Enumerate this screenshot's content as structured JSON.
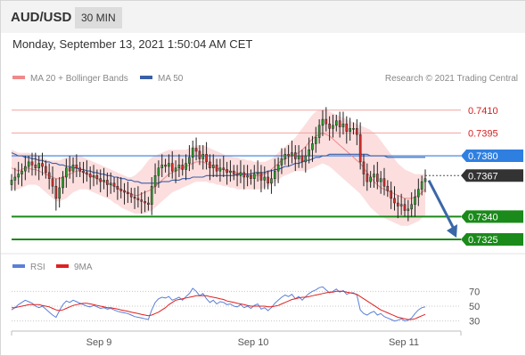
{
  "header": {
    "symbol": "AUD/USD",
    "timeframe": "30 MIN"
  },
  "datetime": "Monday, September 13, 2021 1:50:04 AM CET",
  "legend": {
    "bollinger": "MA 20 + Bollinger Bands",
    "ma50": "MA 50",
    "credit": "Research © 2021 Trading Central"
  },
  "rsi_legend": {
    "rsi": "RSI",
    "ma": "9MA"
  },
  "colors": {
    "bollinger": "#f08a8a",
    "ma50": "#3a5fa8",
    "resistance": "#e06060",
    "support": "#1a8a1a",
    "current": "#333333",
    "pivot": "#2f7fe0",
    "arrow": "#3a67a8",
    "rsi": "#5a7fd8",
    "rsi_ma": "#e02020"
  },
  "chart_data": [
    {
      "type": "candlestick",
      "title": "AUD/USD 30 MIN",
      "x_ticks": [
        "Sep 9",
        "Sep 10",
        "Sep 11"
      ],
      "ylim": [
        0.7318,
        0.7421
      ],
      "levels": [
        {
          "value": 0.741,
          "label": "0.7410",
          "kind": "resistance"
        },
        {
          "value": 0.7395,
          "label": "0.7395",
          "kind": "resistance"
        },
        {
          "value": 0.738,
          "label": "0.7380",
          "kind": "pivot"
        },
        {
          "value": 0.7367,
          "label": "0.7367",
          "kind": "current"
        },
        {
          "value": 0.734,
          "label": "0.7340",
          "kind": "support"
        },
        {
          "value": 0.7325,
          "label": "0.7325",
          "kind": "support"
        }
      ],
      "close": [
        0.7364,
        0.7366,
        0.7368,
        0.737,
        0.7373,
        0.7376,
        0.7374,
        0.7372,
        0.7375,
        0.7373,
        0.7369,
        0.7365,
        0.736,
        0.7352,
        0.7359,
        0.7366,
        0.7372,
        0.737,
        0.7374,
        0.7372,
        0.737,
        0.7369,
        0.7368,
        0.7366,
        0.7367,
        0.7365,
        0.7363,
        0.7364,
        0.7361,
        0.7362,
        0.736,
        0.7358,
        0.7357,
        0.7356,
        0.7355,
        0.7353,
        0.7352,
        0.7351,
        0.735,
        0.7349,
        0.7348,
        0.736,
        0.7367,
        0.7372,
        0.7374,
        0.7373,
        0.7375,
        0.737,
        0.7372,
        0.7374,
        0.7371,
        0.7375,
        0.7379,
        0.7385,
        0.7383,
        0.7378,
        0.7381,
        0.7376,
        0.7372,
        0.7374,
        0.737,
        0.7372,
        0.7371,
        0.7369,
        0.737,
        0.7368,
        0.7367,
        0.7369,
        0.7366,
        0.7367,
        0.7365,
        0.7368,
        0.7369,
        0.7364,
        0.7366,
        0.7362,
        0.7365,
        0.737,
        0.7374,
        0.7378,
        0.7381,
        0.738,
        0.7382,
        0.7378,
        0.738,
        0.7376,
        0.738,
        0.7384,
        0.7388,
        0.7392,
        0.74,
        0.7404,
        0.7401,
        0.7398,
        0.74,
        0.7403,
        0.7399,
        0.7401,
        0.7396,
        0.7398,
        0.7398,
        0.7394,
        0.7376,
        0.7368,
        0.7363,
        0.7366,
        0.7368,
        0.7363,
        0.7365,
        0.736,
        0.7357,
        0.7352,
        0.7349,
        0.7347,
        0.7348,
        0.7344,
        0.7345,
        0.7348,
        0.7353,
        0.7358,
        0.7363,
        0.7365
      ],
      "ma20": [
        0.7372,
        0.7371,
        0.737,
        0.7371,
        0.7372,
        0.7372,
        0.7371,
        0.7371,
        0.737,
        0.7369,
        0.7368,
        0.7367,
        0.7366,
        0.7365,
        0.7365,
        0.7366,
        0.7367,
        0.7368,
        0.7369,
        0.737,
        0.737,
        0.7369,
        0.7368,
        0.7367,
        0.7366,
        0.7365,
        0.7364,
        0.7363,
        0.7362,
        0.7361,
        0.736,
        0.7359,
        0.7358,
        0.7357,
        0.7356,
        0.7355,
        0.7354,
        0.7354,
        0.7355,
        0.7356,
        0.7357,
        0.7358,
        0.736,
        0.7362,
        0.7364,
        0.7366,
        0.7368,
        0.7369,
        0.737,
        0.7371,
        0.7372,
        0.7373,
        0.7374,
        0.7375,
        0.7376,
        0.7376,
        0.7376,
        0.7375,
        0.7374,
        0.7373,
        0.7372,
        0.7371,
        0.7371,
        0.737,
        0.737,
        0.7369,
        0.7369,
        0.7368,
        0.7368,
        0.7367,
        0.7367,
        0.7367,
        0.7367,
        0.7367,
        0.7368,
        0.7369,
        0.7371,
        0.7373,
        0.7375,
        0.7377,
        0.7378,
        0.7379,
        0.738,
        0.7381,
        0.7382,
        0.7384,
        0.7386,
        0.7389,
        0.7391,
        0.7393,
        0.7394,
        0.7395,
        0.7394,
        0.7393,
        0.7391,
        0.7389,
        0.7387,
        0.7385,
        0.7383,
        0.7381,
        0.7379,
        0.7377,
        0.7375,
        0.7372,
        0.7369,
        0.7366,
        0.7363,
        0.7361,
        0.7359,
        0.7358,
        0.7357,
        0.7356,
        0.7355,
        0.7354,
        0.7353,
        0.7352,
        0.7352,
        0.7352,
        0.7353,
        0.7354,
        0.7356,
        0.7358
      ],
      "bb_upper": [
        0.7384,
        0.7383,
        0.7382,
        0.7382,
        0.7382,
        0.7382,
        0.7381,
        0.7381,
        0.738,
        0.7379,
        0.7378,
        0.7377,
        0.7377,
        0.7377,
        0.7377,
        0.7378,
        0.7379,
        0.7379,
        0.738,
        0.738,
        0.738,
        0.7379,
        0.7378,
        0.7377,
        0.7376,
        0.7375,
        0.7374,
        0.7373,
        0.7372,
        0.7371,
        0.737,
        0.7369,
        0.7368,
        0.7367,
        0.7366,
        0.7366,
        0.7367,
        0.7369,
        0.7371,
        0.7374,
        0.7377,
        0.7379,
        0.738,
        0.7381,
        0.7382,
        0.7383,
        0.7384,
        0.7384,
        0.7384,
        0.7384,
        0.7384,
        0.7384,
        0.7385,
        0.7386,
        0.7387,
        0.7387,
        0.7387,
        0.7386,
        0.7385,
        0.7384,
        0.7383,
        0.7382,
        0.7381,
        0.738,
        0.738,
        0.7379,
        0.7379,
        0.7378,
        0.7378,
        0.7377,
        0.7377,
        0.7376,
        0.7376,
        0.7376,
        0.7376,
        0.7377,
        0.7378,
        0.738,
        0.7382,
        0.7384,
        0.7386,
        0.7388,
        0.739,
        0.7392,
        0.7395,
        0.7398,
        0.7401,
        0.7404,
        0.7407,
        0.7409,
        0.741,
        0.741,
        0.741,
        0.7409,
        0.7408,
        0.7407,
        0.7406,
        0.7405,
        0.7404,
        0.7403,
        0.7402,
        0.7401,
        0.74,
        0.7399,
        0.7398,
        0.7397,
        0.7395,
        0.7393,
        0.739,
        0.7387,
        0.7384,
        0.7381,
        0.7378,
        0.7375,
        0.7373,
        0.7371,
        0.737,
        0.7369,
        0.7368,
        0.7368,
        0.7368,
        0.7368
      ],
      "bb_lower": [
        0.7358,
        0.7358,
        0.7358,
        0.7359,
        0.736,
        0.7361,
        0.7361,
        0.7361,
        0.736,
        0.7358,
        0.7356,
        0.7354,
        0.7352,
        0.735,
        0.735,
        0.7351,
        0.7352,
        0.7354,
        0.7356,
        0.7357,
        0.7358,
        0.7358,
        0.7358,
        0.7357,
        0.7356,
        0.7355,
        0.7354,
        0.7353,
        0.7352,
        0.7351,
        0.7349,
        0.7348,
        0.7346,
        0.7345,
        0.7344,
        0.7343,
        0.7342,
        0.7342,
        0.7342,
        0.7342,
        0.7343,
        0.7344,
        0.7346,
        0.7348,
        0.735,
        0.7352,
        0.7354,
        0.7356,
        0.7357,
        0.7358,
        0.7359,
        0.736,
        0.7361,
        0.7362,
        0.7363,
        0.7363,
        0.7363,
        0.7363,
        0.7362,
        0.7362,
        0.7361,
        0.7361,
        0.736,
        0.736,
        0.7359,
        0.7359,
        0.7358,
        0.7358,
        0.7358,
        0.7358,
        0.7358,
        0.7358,
        0.7358,
        0.7358,
        0.7359,
        0.736,
        0.7361,
        0.7363,
        0.7364,
        0.7366,
        0.7367,
        0.7368,
        0.7369,
        0.737,
        0.737,
        0.737,
        0.737,
        0.7371,
        0.7372,
        0.7373,
        0.7374,
        0.7375,
        0.7374,
        0.7373,
        0.7371,
        0.7369,
        0.7367,
        0.7365,
        0.7363,
        0.7361,
        0.7359,
        0.7357,
        0.7355,
        0.7352,
        0.7349,
        0.7346,
        0.7344,
        0.7342,
        0.734,
        0.7339,
        0.7338,
        0.7337,
        0.7336,
        0.7335,
        0.7334,
        0.7334,
        0.7334,
        0.7335,
        0.7336,
        0.7337,
        0.7339,
        0.7341
      ],
      "ma50": [
        0.7382,
        0.7381,
        0.738,
        0.738,
        0.7379,
        0.7379,
        0.7378,
        0.7378,
        0.7377,
        0.7377,
        0.7376,
        0.7376,
        0.7375,
        0.7375,
        0.7374,
        0.7374,
        0.7373,
        0.7373,
        0.7372,
        0.7372,
        0.7371,
        0.7371,
        0.737,
        0.737,
        0.7369,
        0.7369,
        0.7368,
        0.7368,
        0.7367,
        0.7367,
        0.7366,
        0.7366,
        0.7365,
        0.7365,
        0.7364,
        0.7364,
        0.7363,
        0.7363,
        0.7362,
        0.7362,
        0.7362,
        0.7362,
        0.7362,
        0.7362,
        0.7363,
        0.7363,
        0.7363,
        0.7364,
        0.7364,
        0.7364,
        0.7365,
        0.7365,
        0.7365,
        0.7366,
        0.7366,
        0.7366,
        0.7366,
        0.7367,
        0.7367,
        0.7367,
        0.7367,
        0.7367,
        0.7367,
        0.7367,
        0.7367,
        0.7367,
        0.7368,
        0.7368,
        0.7368,
        0.7368,
        0.7368,
        0.7369,
        0.7369,
        0.7369,
        0.7369,
        0.737,
        0.737,
        0.7371,
        0.7371,
        0.7372,
        0.7373,
        0.7373,
        0.7374,
        0.7375,
        0.7375,
        0.7376,
        0.7377,
        0.7377,
        0.7378,
        0.7379,
        0.7379,
        0.738,
        0.738,
        0.7381,
        0.7381,
        0.7381,
        0.7381,
        0.7381,
        0.7381,
        0.7381,
        0.7381,
        0.7381,
        0.7381,
        0.7381,
        0.7381,
        0.738,
        0.738,
        0.738,
        0.738,
        0.738,
        0.7379,
        0.7379,
        0.7379,
        0.7379,
        0.7379,
        0.7379,
        0.7379,
        0.7379,
        0.7379,
        0.7379,
        0.7379,
        0.7379
      ]
    },
    {
      "type": "line",
      "title": "RSI",
      "y_ticks": [
        70,
        50,
        30
      ],
      "ylim": [
        20,
        80
      ],
      "series": [
        {
          "name": "RSI",
          "values": [
            45,
            48,
            52,
            55,
            58,
            56,
            54,
            50,
            48,
            50,
            46,
            42,
            38,
            35,
            44,
            52,
            57,
            55,
            58,
            56,
            54,
            52,
            50,
            49,
            51,
            49,
            47,
            48,
            46,
            47,
            45,
            43,
            42,
            41,
            40,
            38,
            36,
            35,
            34,
            33,
            32,
            45,
            55,
            60,
            62,
            61,
            63,
            58,
            60,
            62,
            58,
            63,
            67,
            74,
            70,
            64,
            67,
            60,
            55,
            58,
            53,
            56,
            55,
            52,
            53,
            50,
            49,
            52,
            48,
            50,
            47,
            51,
            53,
            46,
            48,
            44,
            48,
            54,
            58,
            62,
            65,
            63,
            66,
            60,
            63,
            58,
            63,
            67,
            70,
            72,
            75,
            76,
            72,
            68,
            70,
            73,
            69,
            71,
            66,
            68,
            68,
            65,
            45,
            40,
            38,
            41,
            43,
            38,
            40,
            36,
            34,
            32,
            30,
            31,
            33,
            30,
            31,
            34,
            40,
            45,
            48,
            49
          ]
        },
        {
          "name": "9MA",
          "values": [
            48,
            48,
            49,
            50,
            51,
            52,
            52,
            52,
            52,
            51,
            50,
            49,
            47,
            45,
            44,
            45,
            47,
            49,
            51,
            52,
            53,
            54,
            54,
            53,
            52,
            51,
            50,
            49,
            48,
            48,
            47,
            46,
            45,
            44,
            43,
            42,
            41,
            40,
            39,
            38,
            37,
            38,
            40,
            42,
            45,
            48,
            52,
            55,
            58,
            59,
            60,
            61,
            62,
            63,
            64,
            64,
            64,
            64,
            63,
            62,
            61,
            60,
            59,
            57,
            56,
            55,
            54,
            53,
            52,
            51,
            50,
            50,
            50,
            50,
            50,
            49,
            49,
            50,
            51,
            53,
            55,
            57,
            59,
            60,
            61,
            62,
            62,
            63,
            64,
            65,
            66,
            67,
            68,
            69,
            69,
            70,
            70,
            70,
            69,
            68,
            67,
            66,
            63,
            60,
            57,
            54,
            51,
            48,
            45,
            43,
            41,
            39,
            37,
            35,
            34,
            33,
            32,
            32,
            33,
            35,
            37,
            39
          ]
        }
      ]
    }
  ]
}
